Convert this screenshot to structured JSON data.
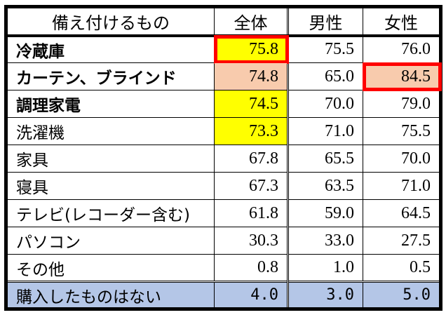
{
  "headers": [
    "備え付けるもの",
    "全体",
    "男性",
    "女性"
  ],
  "rows": [
    {
      "label": "冷蔵庫",
      "bold": true,
      "values": [
        "75.8",
        "75.5",
        "76.0"
      ],
      "highlight": [
        "yellow",
        null,
        null
      ],
      "boxed": [
        true,
        false,
        false
      ]
    },
    {
      "label": "カーテン、ブラインド",
      "bold": true,
      "values": [
        "74.8",
        "65.0",
        "84.5"
      ],
      "highlight": [
        "peach",
        null,
        "peach"
      ],
      "boxed": [
        false,
        false,
        true
      ]
    },
    {
      "label": "調理家電",
      "bold": true,
      "values": [
        "74.5",
        "70.0",
        "79.0"
      ],
      "highlight": [
        "yellow",
        null,
        null
      ],
      "boxed": [
        false,
        false,
        false
      ]
    },
    {
      "label": "洗濯機",
      "bold": false,
      "values": [
        "73.3",
        "71.0",
        "75.5"
      ],
      "highlight": [
        "yellow",
        null,
        null
      ],
      "boxed": [
        false,
        false,
        false
      ]
    },
    {
      "label": "家具",
      "bold": false,
      "values": [
        "67.8",
        "65.5",
        "70.0"
      ],
      "highlight": [
        null,
        null,
        null
      ],
      "boxed": [
        false,
        false,
        false
      ]
    },
    {
      "label": "寝具",
      "bold": false,
      "values": [
        "67.3",
        "63.5",
        "71.0"
      ],
      "highlight": [
        null,
        null,
        null
      ],
      "boxed": [
        false,
        false,
        false
      ]
    },
    {
      "label": "テレビ(レコーダー含む)",
      "bold": false,
      "values": [
        "61.8",
        "59.0",
        "64.5"
      ],
      "highlight": [
        null,
        null,
        null
      ],
      "boxed": [
        false,
        false,
        false
      ]
    },
    {
      "label": "パソコン",
      "bold": false,
      "values": [
        "30.3",
        "33.0",
        "27.5"
      ],
      "highlight": [
        null,
        null,
        null
      ],
      "boxed": [
        false,
        false,
        false
      ]
    },
    {
      "label": "その他",
      "bold": false,
      "values": [
        "0.8",
        "1.0",
        "0.5"
      ],
      "highlight": [
        null,
        null,
        null
      ],
      "boxed": [
        false,
        false,
        false
      ]
    },
    {
      "label": "購入したものはない",
      "bold": false,
      "values": [
        "4.0",
        "3.0",
        "5.0"
      ],
      "highlight": [
        null,
        null,
        null
      ],
      "boxed": [
        false,
        false,
        false
      ],
      "last": true
    }
  ],
  "colors": {
    "yellow": "#ffff00",
    "peach": "#f8cbad",
    "box": "#ff0000",
    "last_row": "#b4c6e7"
  }
}
